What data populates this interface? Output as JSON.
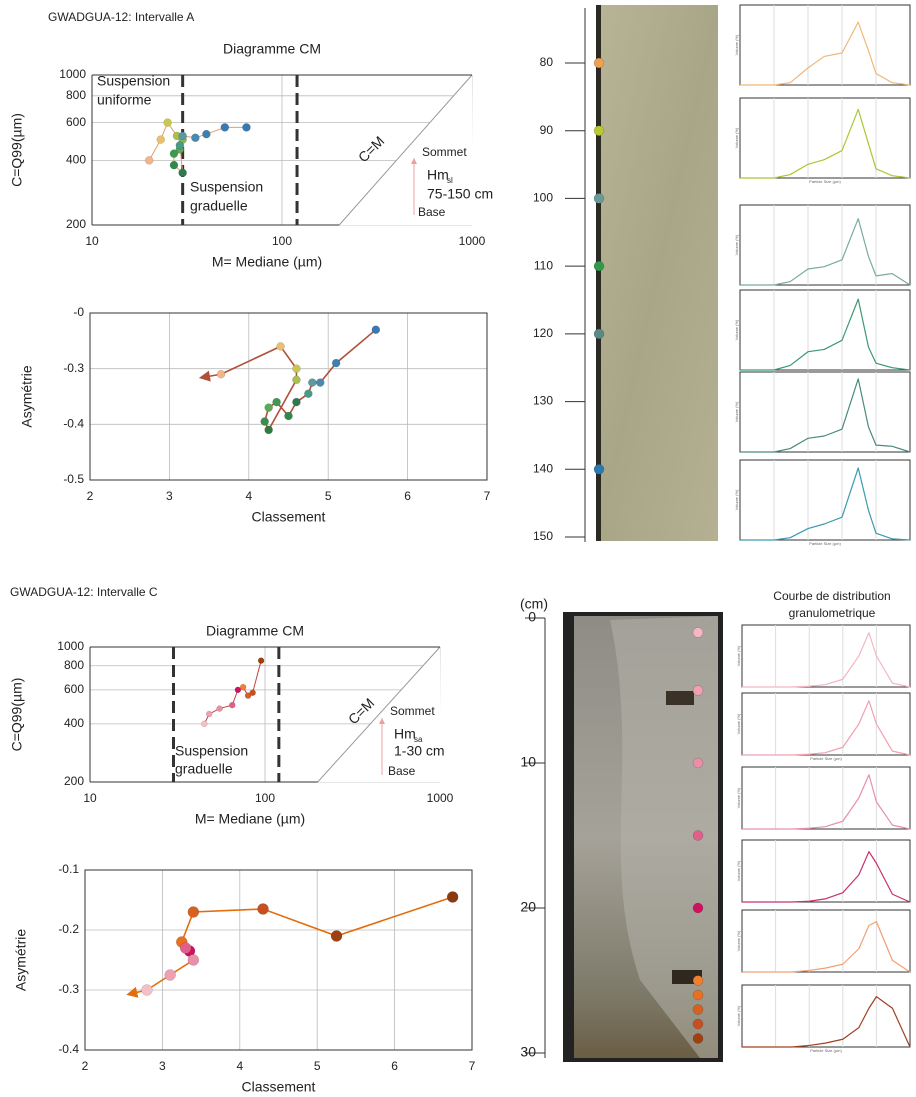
{
  "headings": [
    "GWADGUA-12: Intervalle A",
    "GWADGUA-12: Intervalle C"
  ],
  "chart_data": [
    {
      "type": "scatter",
      "title": "Diagramme CM",
      "x_label": "M= Mediane (µm)",
      "y_label": "C=Q99(µm)",
      "xlog": true,
      "ylog": true,
      "xlim": [
        10,
        1000
      ],
      "ylim": [
        200,
        1000
      ],
      "xticks": [
        10,
        100,
        1000
      ],
      "yticks": [
        200,
        400,
        600,
        800,
        1000
      ],
      "grid": true,
      "vlines": [
        30,
        120
      ],
      "line_color": "#e0a070",
      "series": [
        {
          "x": [
            20,
            23,
            25,
            28,
            30,
            29,
            27,
            27,
            30,
            29,
            30,
            35,
            40,
            50,
            65
          ],
          "values": [
            400,
            500,
            600,
            520,
            500,
            450,
            430,
            380,
            350,
            470,
            520,
            510,
            530,
            570,
            570
          ],
          "colors": [
            "#f2b48a",
            "#e8c070",
            "#c8c850",
            "#a8c050",
            "#88b850",
            "#60a858",
            "#3e9a50",
            "#2e8a48",
            "#2e7a50",
            "#4a9a88",
            "#5a9aa0",
            "#4a8ab0",
            "#3a82b0",
            "#3a7ab0",
            "#3a78b0"
          ]
        }
      ],
      "annotations": [
        "Suspension",
        "uniforme",
        "Suspension",
        "graduelle",
        "C=M",
        "Sommet",
        "Hm",
        "sl",
        "75-150 cm",
        "Base"
      ]
    },
    {
      "type": "scatter",
      "x_label": "Classement",
      "y_label": "Asymétrie",
      "xlim": [
        2,
        7
      ],
      "ylim": [
        -0.5,
        -0.2
      ],
      "xticks": [
        2,
        3,
        4,
        5,
        6,
        7
      ],
      "yticks": [
        {
          "value": -0.2,
          "label": "-0"
        },
        -0.3,
        -0.4,
        -0.5
      ],
      "grid": true,
      "line_color": "#b0503a",
      "arrow": true,
      "series": [
        {
          "x": [
            5.6,
            5.1,
            4.9,
            4.8,
            4.75,
            4.6,
            4.5,
            4.35,
            4.25,
            4.2,
            4.25,
            4.6,
            4.6,
            4.4,
            3.65
          ],
          "values": [
            -0.23,
            -0.29,
            -0.325,
            -0.325,
            -0.345,
            -0.36,
            -0.385,
            -0.36,
            -0.37,
            -0.395,
            -0.41,
            -0.32,
            -0.3,
            -0.26,
            -0.31
          ],
          "colors": [
            "#3a78b0",
            "#3a82b0",
            "#4a8ab0",
            "#5a9aa0",
            "#4a9a88",
            "#2e7a50",
            "#2e8a48",
            "#3e9a50",
            "#60a858",
            "#3e8a50",
            "#2e7a40",
            "#a8c050",
            "#c8c850",
            "#e8c070",
            "#f2b48a"
          ]
        }
      ]
    },
    {
      "type": "scatter",
      "title": "Diagramme CM",
      "x_label": "M= Mediane (µm)",
      "y_label": "C=Q99(µm)",
      "xlog": true,
      "ylog": true,
      "xlim": [
        10,
        1000
      ],
      "ylim": [
        200,
        1000
      ],
      "xticks": [
        10,
        100,
        1000
      ],
      "yticks": [
        200,
        400,
        600,
        800,
        1000
      ],
      "grid": true,
      "vlines": [
        30,
        120
      ],
      "line_color": "#c04040",
      "series": [
        {
          "x": [
            45,
            48,
            55,
            65,
            70,
            75,
            80,
            85,
            95
          ],
          "values": [
            400,
            450,
            480,
            500,
            600,
            620,
            560,
            580,
            850
          ],
          "colors": [
            "#f4c0c8",
            "#f0a0b0",
            "#e890a8",
            "#e0608a",
            "#d01060",
            "#f08030",
            "#d86020",
            "#c85020",
            "#a04010"
          ]
        }
      ],
      "annotations": [
        "Suspension",
        "graduelle",
        "C=M",
        "Sommet",
        "Hm",
        "sa",
        "1-30 cm",
        "Base"
      ]
    },
    {
      "type": "scatter",
      "x_label": "Classement",
      "y_label": "Asymétrie",
      "xlim": [
        2,
        7
      ],
      "ylim": [
        -0.4,
        -0.1
      ],
      "xticks": [
        2,
        3,
        4,
        5,
        6,
        7
      ],
      "yticks": [
        -0.1,
        -0.2,
        -0.3,
        -0.4
      ],
      "grid": true,
      "line_color": "#e46c0a",
      "arrow": true,
      "series": [
        {
          "x": [
            6.75,
            5.25,
            4.3,
            3.4,
            3.25,
            3.35,
            3.3,
            3.4,
            3.1,
            2.8
          ],
          "values": [
            -0.145,
            -0.21,
            -0.165,
            -0.17,
            -0.22,
            -0.235,
            -0.23,
            -0.25,
            -0.275,
            -0.3
          ],
          "colors": [
            "#8a3a10",
            "#a04010",
            "#c85020",
            "#d86020",
            "#e87020",
            "#d01060",
            "#e0608a",
            "#e890a8",
            "#f0a0b0",
            "#f4c0c8"
          ]
        }
      ]
    }
  ],
  "cores": [
    {
      "depth_ticks": [
        80,
        90,
        100,
        110,
        120,
        130,
        140,
        150
      ],
      "samples": {
        "depths": [
          80,
          90,
          100,
          110,
          120,
          140
        ],
        "colors": [
          "#f0a050",
          "#b8c830",
          "#6a9a98",
          "#2e9a4a",
          "#5a8a88",
          "#2a7ab0"
        ]
      }
    },
    {
      "unit_label": "(cm)",
      "depth_ticks": [
        0,
        10,
        20,
        30
      ],
      "samples": {
        "depths": [
          1,
          5,
          10,
          15,
          20,
          25,
          26,
          27,
          28,
          29
        ],
        "colors": [
          "#f4b6c2",
          "#f0a0b0",
          "#e890a8",
          "#e0608a",
          "#d01060",
          "#f08030",
          "#e87020",
          "#d86020",
          "#c85020",
          "#a04010"
        ]
      }
    }
  ],
  "distributions": [
    {
      "y_label": "Volume (%)",
      "x_label": "Particle Size (µm)",
      "xlim": [
        0.01,
        1000
      ],
      "ylim": [
        0,
        7
      ],
      "size_um": [
        0.01,
        0.1,
        0.3,
        1,
        3,
        10,
        30,
        60,
        100,
        300,
        1000
      ],
      "panels": [
        {
          "color": "#f0b878",
          "values": [
            0,
            0,
            0.2,
            1.5,
            2.5,
            2.8,
            5.5,
            3,
            1,
            0.2,
            0
          ]
        },
        {
          "color": "#a8c830",
          "values": [
            0,
            0,
            0.3,
            1.2,
            1.6,
            2.4,
            6,
            3,
            0.8,
            0.2,
            0
          ]
        },
        {
          "color": "#7aaaa0",
          "values": [
            0,
            0,
            0.3,
            1.4,
            1.6,
            2.2,
            5.8,
            2.5,
            0.8,
            1,
            0
          ]
        },
        {
          "color": "#3a9a70",
          "values": [
            0,
            0,
            0.4,
            1.6,
            1.8,
            2.6,
            6.2,
            2,
            0.6,
            0.2,
            0
          ]
        },
        {
          "color": "#4a8a80",
          "values": [
            0,
            0,
            0.3,
            1.2,
            1.4,
            2,
            6.4,
            2.2,
            0.6,
            0.5,
            0
          ]
        },
        {
          "color": "#3a9ab0",
          "values": [
            0,
            0,
            0.2,
            1,
            1.4,
            2,
            6.3,
            2.6,
            0.6,
            0.1,
            0
          ]
        }
      ]
    },
    {
      "y_label": "Volume (%)",
      "x_label": "Particle Size (µm)",
      "xlim": [
        0.01,
        1000
      ],
      "ylim": [
        0,
        8
      ],
      "size_um": [
        0.01,
        0.1,
        0.3,
        1,
        3,
        10,
        30,
        60,
        100,
        300,
        1000
      ],
      "panels": [
        {
          "color": "#f4b6c2",
          "values": [
            0,
            0,
            0,
            0.1,
            0.3,
            1,
            4,
            7,
            4,
            0.5,
            0
          ]
        },
        {
          "color": "#f0a0b0",
          "values": [
            0,
            0,
            0,
            0.1,
            0.3,
            1,
            4,
            7,
            4,
            0.5,
            0
          ]
        },
        {
          "color": "#e890a8",
          "values": [
            0,
            0,
            0,
            0.1,
            0.3,
            1,
            4,
            7,
            3.5,
            0.5,
            0
          ]
        },
        {
          "color": "#c83070",
          "values": [
            0,
            0,
            0,
            0.1,
            0.4,
            1.2,
            3.5,
            6.5,
            5,
            1,
            0
          ]
        },
        {
          "color": "#f0a070",
          "values": [
            0,
            0,
            0,
            0.2,
            0.5,
            1,
            3,
            6,
            6.5,
            1.5,
            0
          ]
        },
        {
          "color": "#a04020",
          "values": [
            0,
            0,
            0,
            0.2,
            0.5,
            1,
            2.5,
            5,
            6.5,
            5,
            0
          ]
        }
      ]
    }
  ],
  "distribution_heading": [
    "Courbe de distribution",
    "granulometrique"
  ]
}
